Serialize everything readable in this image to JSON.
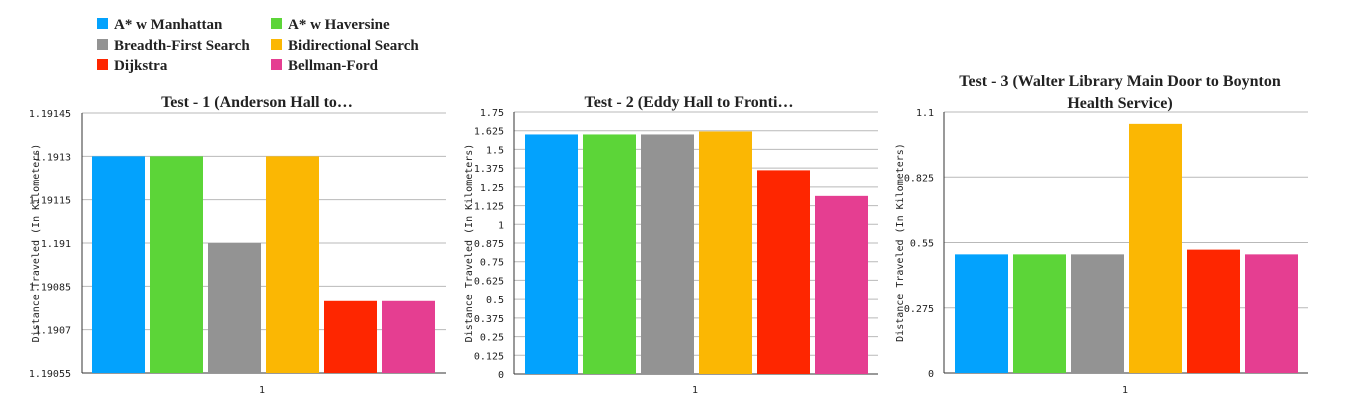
{
  "legend": {
    "items": [
      {
        "name": "A* w Manhattan",
        "color": "#03a2fd"
      },
      {
        "name": "A* w Haversine",
        "color": "#5cd538"
      },
      {
        "name": "Breadth-First Search",
        "color": "#939393"
      },
      {
        "name": "Bidirectional Search",
        "color": "#fbb703"
      },
      {
        "name": "Dijkstra",
        "color": "#fe2600"
      },
      {
        "name": "Bellman-Ford",
        "color": "#e53e91"
      }
    ]
  },
  "chart_data": [
    {
      "type": "bar",
      "title_lines": [
        "Test - 1 (Anderson Hall to…"
      ],
      "ylabel": "Distance Traveled (In Kilometers)",
      "categories": [
        "1"
      ],
      "ylim": [
        1.19055,
        1.19145
      ],
      "yticks": [
        "1.19145",
        "1.1913",
        "1.19115",
        "1.191",
        "1.19085",
        "1.1907",
        "1.19055"
      ],
      "series": [
        {
          "name": "A* w Manhattan",
          "values": [
            1.1913
          ]
        },
        {
          "name": "A* w Haversine",
          "values": [
            1.1913
          ]
        },
        {
          "name": "Breadth-First Search",
          "values": [
            1.191
          ]
        },
        {
          "name": "Bidirectional Search",
          "values": [
            1.1913
          ]
        },
        {
          "name": "Dijkstra",
          "values": [
            1.1908
          ]
        },
        {
          "name": "Bellman-Ford",
          "values": [
            1.1908
          ]
        }
      ]
    },
    {
      "type": "bar",
      "title_lines": [
        "Test - 2 (Eddy Hall to Fronti…"
      ],
      "ylabel": "Distance Traveled (In Kilometers)",
      "categories": [
        "1"
      ],
      "ylim": [
        0,
        1.75
      ],
      "yticks": [
        "1.75",
        "1.625",
        "1.5",
        "1.375",
        "1.25",
        "1.125",
        "1",
        "0.875",
        "0.75",
        "0.625",
        "0.5",
        "0.375",
        "0.25",
        "0.125",
        "0"
      ],
      "series": [
        {
          "name": "A* w Manhattan",
          "values": [
            1.6
          ]
        },
        {
          "name": "A* w Haversine",
          "values": [
            1.6
          ]
        },
        {
          "name": "Breadth-First Search",
          "values": [
            1.6
          ]
        },
        {
          "name": "Bidirectional Search",
          "values": [
            1.62
          ]
        },
        {
          "name": "Dijkstra",
          "values": [
            1.36
          ]
        },
        {
          "name": "Bellman-Ford",
          "values": [
            1.19
          ]
        }
      ]
    },
    {
      "type": "bar",
      "title_lines": [
        "Test - 3 (Walter Library Main Door to Boynton",
        "Health Service)"
      ],
      "ylabel": "Distance Traveled (In Kilometers)",
      "categories": [
        "1"
      ],
      "ylim": [
        0,
        1.1
      ],
      "yticks": [
        "1.1",
        "0.825",
        "0.55",
        "0.275",
        "0"
      ],
      "series": [
        {
          "name": "A* w Manhattan",
          "values": [
            0.5
          ]
        },
        {
          "name": "A* w Haversine",
          "values": [
            0.5
          ]
        },
        {
          "name": "Breadth-First Search",
          "values": [
            0.5
          ]
        },
        {
          "name": "Bidirectional Search",
          "values": [
            1.05
          ]
        },
        {
          "name": "Dijkstra",
          "values": [
            0.52
          ]
        },
        {
          "name": "Bellman-Ford",
          "values": [
            0.5
          ]
        }
      ]
    }
  ]
}
